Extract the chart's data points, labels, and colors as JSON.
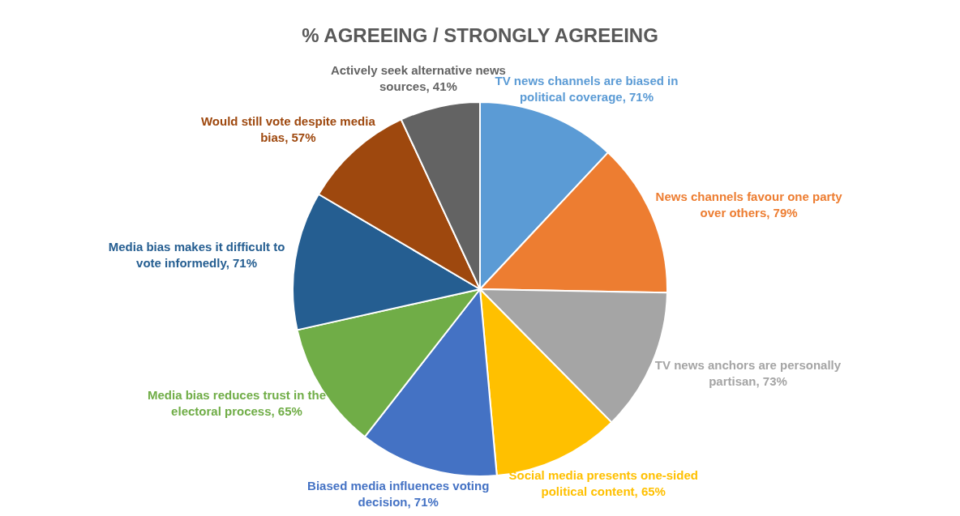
{
  "chart_data": {
    "type": "pie",
    "title": "% AGREEING / STRONGLY AGREEING",
    "categories": [
      "TV news channels are biased in political coverage",
      "News channels favour one party over others",
      "TV news anchors are personally partisan",
      "Social media presents one-sided political content",
      "Biased media influences voting decision",
      "Media bias reduces trust in the electoral process",
      "Media bias makes it difficult to vote informedly",
      "Would still vote despite media bias",
      "Actively seek alternative news sources"
    ],
    "values": [
      71,
      79,
      73,
      65,
      71,
      65,
      71,
      57,
      41
    ],
    "value_labels": [
      "71%",
      "79%",
      "73%",
      "65%",
      "71%",
      "65%",
      "71%",
      "57%",
      "41%"
    ],
    "colors": [
      "#5b9bd5",
      "#ed7d31",
      "#a5a5a5",
      "#ffc000",
      "#4472c4",
      "#70ad47",
      "#255e91",
      "#9e480e",
      "#636363"
    ],
    "legend": false
  }
}
